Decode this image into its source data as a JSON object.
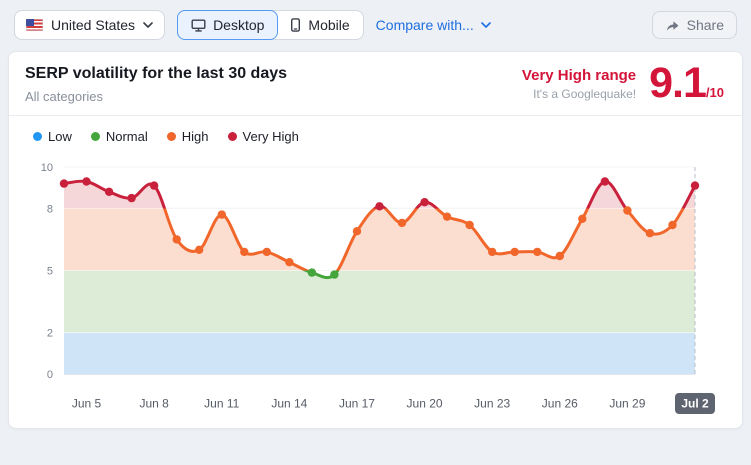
{
  "topbar": {
    "country": {
      "label": "United States"
    },
    "device_tabs": [
      {
        "label": "Desktop",
        "selected": true
      },
      {
        "label": "Mobile",
        "selected": false
      }
    ],
    "compare_label": "Compare with...",
    "share_label": "Share"
  },
  "header": {
    "title": "SERP volatility for the last 30 days",
    "subtitle": "All categories",
    "range_label": "Very High range",
    "range_sublabel": "It's a Googlequake!",
    "score": "9.1",
    "score_max": "/10",
    "accent_color": "#d4153a"
  },
  "legend": [
    {
      "label": "Low",
      "color": "#2196f3"
    },
    {
      "label": "Normal",
      "color": "#43a53c"
    },
    {
      "label": "High",
      "color": "#f1662b"
    },
    {
      "label": "Very High",
      "color": "#c9203c"
    }
  ],
  "chart_data": {
    "type": "line",
    "title": "SERP volatility for the last 30 days",
    "x": [
      "Jun 4",
      "Jun 5",
      "Jun 6",
      "Jun 7",
      "Jun 8",
      "Jun 9",
      "Jun 10",
      "Jun 11",
      "Jun 12",
      "Jun 13",
      "Jun 14",
      "Jun 15",
      "Jun 16",
      "Jun 17",
      "Jun 18",
      "Jun 19",
      "Jun 20",
      "Jun 21",
      "Jun 22",
      "Jun 23",
      "Jun 24",
      "Jun 25",
      "Jun 26",
      "Jun 27",
      "Jun 28",
      "Jun 29",
      "Jun 30",
      "Jul 1",
      "Jul 2"
    ],
    "values": [
      9.2,
      9.3,
      8.8,
      8.5,
      9.1,
      6.5,
      6.0,
      7.7,
      5.9,
      5.9,
      5.4,
      4.9,
      4.8,
      6.9,
      8.1,
      7.3,
      8.3,
      7.6,
      7.2,
      5.9,
      5.9,
      5.9,
      5.7,
      7.5,
      9.3,
      7.9,
      6.8,
      7.2,
      9.1
    ],
    "ylim": [
      0,
      10
    ],
    "yticks": [
      0,
      2,
      5,
      8,
      10
    ],
    "grid": true,
    "legend_position": "top-left",
    "xticks": [
      {
        "index": 1,
        "label": "Jun 5"
      },
      {
        "index": 4,
        "label": "Jun 8"
      },
      {
        "index": 7,
        "label": "Jun 11"
      },
      {
        "index": 10,
        "label": "Jun 14"
      },
      {
        "index": 13,
        "label": "Jun 17"
      },
      {
        "index": 16,
        "label": "Jun 20"
      },
      {
        "index": 19,
        "label": "Jun 23"
      },
      {
        "index": 22,
        "label": "Jun 26"
      },
      {
        "index": 25,
        "label": "Jun 29"
      },
      {
        "index": 28,
        "label": "Jul 2",
        "badge": true
      }
    ],
    "bands": [
      {
        "label": "Low",
        "range": [
          0,
          2
        ],
        "fill": "#d0e4f7",
        "line": "#2196f3"
      },
      {
        "label": "Normal",
        "range": [
          2,
          5
        ],
        "fill": "#dcecd7",
        "line": "#43a53c"
      },
      {
        "label": "High",
        "range": [
          5,
          8
        ],
        "fill": "#fbded0",
        "line": "#f1662b"
      },
      {
        "label": "Very High",
        "range": [
          8,
          10
        ],
        "fill": "#f5d6d9",
        "line": "#c9203c"
      }
    ],
    "last_point_dashed_marker": true,
    "badge_color": "#5f6570",
    "grid_color": "#e6e8ee",
    "axis_color": "#c8cedb",
    "tick_label_color": "#7b8290",
    "xtick_label_color": "#565b66",
    "dashed_marker_color": "#b7bdc7"
  }
}
